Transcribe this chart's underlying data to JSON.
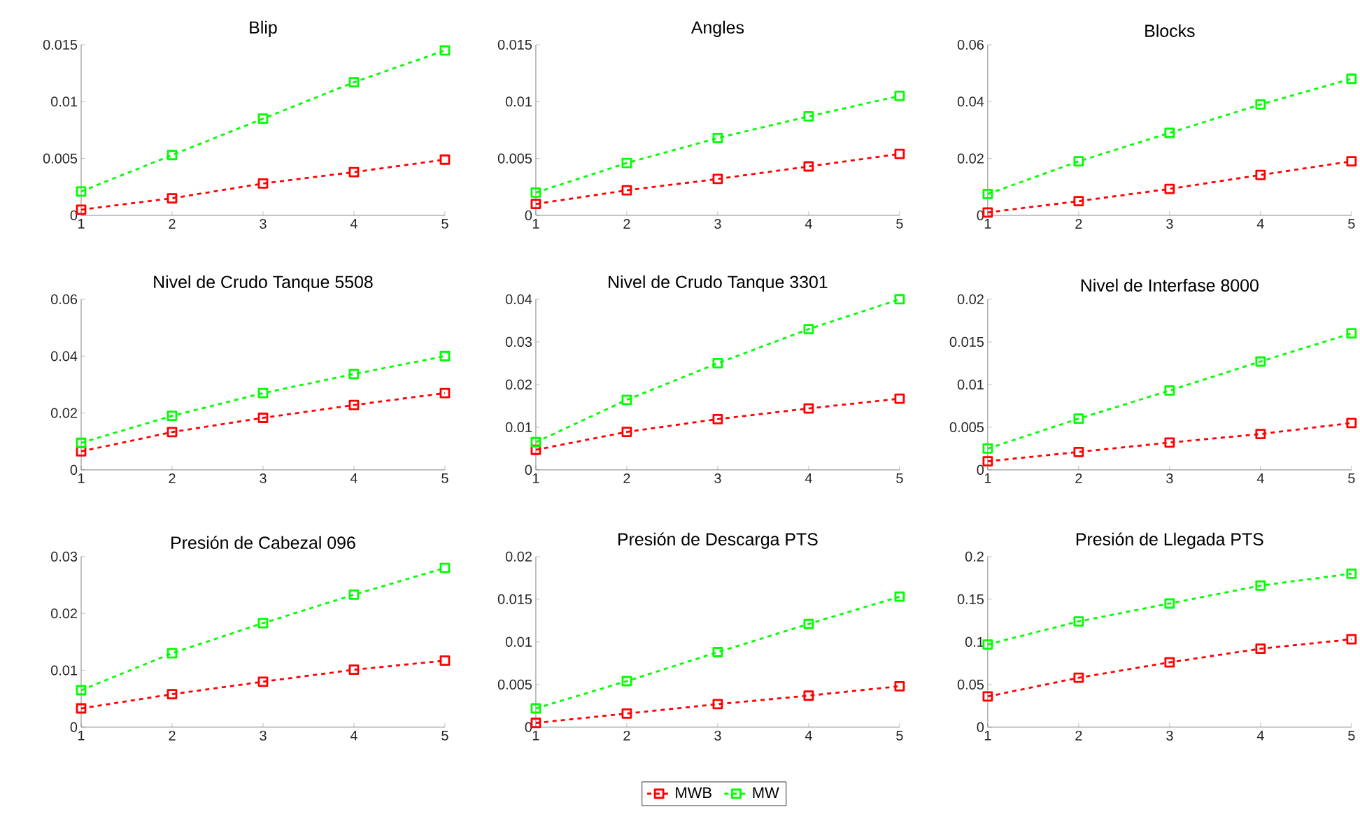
{
  "chart_data": [
    {
      "type": "line",
      "title": "Blip",
      "x": [
        1,
        2,
        3,
        4,
        5
      ],
      "xlim": [
        1,
        5
      ],
      "xticks": [
        1,
        2,
        3,
        4,
        5
      ],
      "ylim": [
        0,
        0.015
      ],
      "yticks": [
        0,
        0.005,
        0.01,
        0.015
      ],
      "marker": "square",
      "line_style": "dashed",
      "series": [
        {
          "color": "#ff0000",
          "values": [
            0.0005,
            0.0015,
            0.0028,
            0.0038,
            0.0049
          ]
        },
        {
          "color": "#00ff00",
          "values": [
            0.0021,
            0.0053,
            0.0085,
            0.0117,
            0.0145
          ]
        }
      ]
    },
    {
      "type": "line",
      "title": "Angles",
      "x": [
        1,
        2,
        3,
        4,
        5
      ],
      "xlim": [
        1,
        5
      ],
      "xticks": [
        1,
        2,
        3,
        4,
        5
      ],
      "ylim": [
        0,
        0.015
      ],
      "yticks": [
        0,
        0.005,
        0.01,
        0.015
      ],
      "marker": "square",
      "line_style": "dashed",
      "series": [
        {
          "color": "#ff0000",
          "values": [
            0.001,
            0.0022,
            0.0032,
            0.0043,
            0.0054
          ]
        },
        {
          "color": "#00ff00",
          "values": [
            0.002,
            0.0046,
            0.0068,
            0.0087,
            0.0105
          ]
        }
      ]
    },
    {
      "type": "line",
      "title": "Blocks",
      "x": [
        1,
        2,
        3,
        4,
        5
      ],
      "xlim": [
        1,
        5
      ],
      "xticks": [
        1,
        2,
        3,
        4,
        5
      ],
      "ylim": [
        0,
        0.06
      ],
      "yticks": [
        0,
        0.02,
        0.04,
        0.06
      ],
      "marker": "square",
      "line_style": "dashed",
      "series": [
        {
          "color": "#ff0000",
          "values": [
            0.001,
            0.005,
            0.0093,
            0.0142,
            0.019
          ]
        },
        {
          "color": "#00ff00",
          "values": [
            0.0075,
            0.019,
            0.029,
            0.039,
            0.048
          ]
        }
      ]
    },
    {
      "type": "line",
      "title": "Nivel de Crudo Tanque 5508",
      "x": [
        1,
        2,
        3,
        4,
        5
      ],
      "xlim": [
        1,
        5
      ],
      "xticks": [
        1,
        2,
        3,
        4,
        5
      ],
      "ylim": [
        0,
        0.06
      ],
      "yticks": [
        0,
        0.02,
        0.04,
        0.06
      ],
      "marker": "square",
      "line_style": "dashed",
      "series": [
        {
          "color": "#ff0000",
          "values": [
            0.0065,
            0.0133,
            0.0183,
            0.0228,
            0.027
          ]
        },
        {
          "color": "#00ff00",
          "values": [
            0.0095,
            0.019,
            0.027,
            0.0337,
            0.04
          ]
        }
      ]
    },
    {
      "type": "line",
      "title": "Nivel de Crudo Tanque 3301",
      "x": [
        1,
        2,
        3,
        4,
        5
      ],
      "xlim": [
        1,
        5
      ],
      "xticks": [
        1,
        2,
        3,
        4,
        5
      ],
      "ylim": [
        0,
        0.04
      ],
      "yticks": [
        0,
        0.01,
        0.02,
        0.03,
        0.04
      ],
      "marker": "square",
      "line_style": "dashed",
      "series": [
        {
          "color": "#ff0000",
          "values": [
            0.0047,
            0.0089,
            0.0119,
            0.0144,
            0.0167
          ]
        },
        {
          "color": "#00ff00",
          "values": [
            0.0065,
            0.0164,
            0.025,
            0.033,
            0.04
          ]
        }
      ]
    },
    {
      "type": "line",
      "title": "Nivel de Interfase 8000",
      "x": [
        1,
        2,
        3,
        4,
        5
      ],
      "xlim": [
        1,
        5
      ],
      "xticks": [
        1,
        2,
        3,
        4,
        5
      ],
      "ylim": [
        0,
        0.02
      ],
      "yticks": [
        0,
        0.005,
        0.01,
        0.015,
        0.02
      ],
      "marker": "square",
      "line_style": "dashed",
      "series": [
        {
          "color": "#ff0000",
          "values": [
            0.001,
            0.0021,
            0.0032,
            0.0042,
            0.0055
          ]
        },
        {
          "color": "#00ff00",
          "values": [
            0.0025,
            0.006,
            0.0093,
            0.0127,
            0.016
          ]
        }
      ]
    },
    {
      "type": "line",
      "title": "Presión de Cabezal 096",
      "x": [
        1,
        2,
        3,
        4,
        5
      ],
      "xlim": [
        1,
        5
      ],
      "xticks": [
        1,
        2,
        3,
        4,
        5
      ],
      "ylim": [
        0,
        0.03
      ],
      "yticks": [
        0,
        0.01,
        0.02,
        0.03
      ],
      "marker": "square",
      "line_style": "dashed",
      "series": [
        {
          "color": "#ff0000",
          "values": [
            0.0033,
            0.0058,
            0.008,
            0.0101,
            0.0117
          ]
        },
        {
          "color": "#00ff00",
          "values": [
            0.0065,
            0.013,
            0.0183,
            0.0233,
            0.028
          ]
        }
      ]
    },
    {
      "type": "line",
      "title": "Presión de Descarga PTS",
      "x": [
        1,
        2,
        3,
        4,
        5
      ],
      "xlim": [
        1,
        5
      ],
      "xticks": [
        1,
        2,
        3,
        4,
        5
      ],
      "ylim": [
        0,
        0.02
      ],
      "yticks": [
        0,
        0.005,
        0.01,
        0.015,
        0.02
      ],
      "marker": "square",
      "line_style": "dashed",
      "legend": "bottom",
      "series": [
        {
          "name": "MWB",
          "color": "#ff0000",
          "values": [
            0.0005,
            0.0016,
            0.0027,
            0.0037,
            0.0048
          ]
        },
        {
          "name": "MW",
          "color": "#00ff00",
          "values": [
            0.0022,
            0.0054,
            0.0088,
            0.0121,
            0.0153
          ]
        }
      ]
    },
    {
      "type": "line",
      "title": "Presión de Llegada PTS",
      "x": [
        1,
        2,
        3,
        4,
        5
      ],
      "xlim": [
        1,
        5
      ],
      "xticks": [
        1,
        2,
        3,
        4,
        5
      ],
      "ylim": [
        0,
        0.2
      ],
      "yticks": [
        0,
        0.05,
        0.1,
        0.15,
        0.2
      ],
      "marker": "square",
      "line_style": "dashed",
      "series": [
        {
          "color": "#ff0000",
          "values": [
            0.036,
            0.058,
            0.076,
            0.092,
            0.103
          ]
        },
        {
          "color": "#00ff00",
          "values": [
            0.097,
            0.124,
            0.145,
            0.166,
            0.18
          ]
        }
      ]
    }
  ]
}
